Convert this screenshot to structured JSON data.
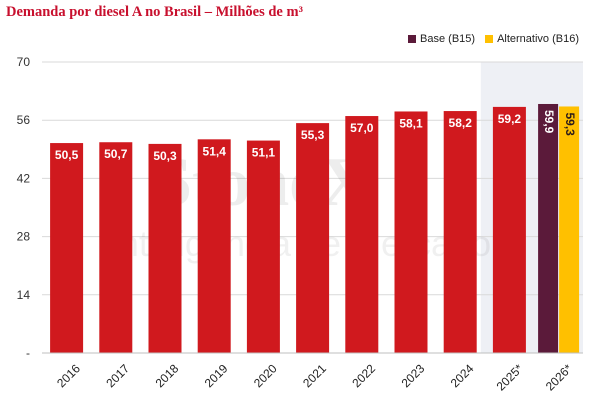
{
  "title": "Demanda por diesel A no Brasil – Milhões de m³",
  "legend": [
    {
      "label": "Base (B15)",
      "color": "#5b1a3a"
    },
    {
      "label": "Alternativo (B16)",
      "color": "#ffc000"
    }
  ],
  "watermark": {
    "line1": "StoneX",
    "line2": "Inteligência de Mercado"
  },
  "chart_data": {
    "type": "bar",
    "title": "Demanda por diesel A no Brasil – Milhões de m³",
    "categories": [
      "2016",
      "2017",
      "2018",
      "2019",
      "2020",
      "2021",
      "2022",
      "2023",
      "2024",
      "2025*",
      "2026*"
    ],
    "y_ticks": [
      "-",
      "14",
      "28",
      "42",
      "56",
      "70"
    ],
    "ylim": [
      0,
      70
    ],
    "grid": true,
    "legend_position": "top-right",
    "bar_color": "#d0191e",
    "series": [
      {
        "values": [
          50.5,
          50.7,
          50.3,
          51.4,
          51.1,
          55.3,
          57.0,
          58.1,
          58.2,
          59.2,
          null
        ],
        "labels": [
          "50,5",
          "50,7",
          "50,3",
          "51,4",
          "51,1",
          "55,3",
          "57,0",
          "58,1",
          "58,2",
          "59,2",
          ""
        ]
      },
      {
        "name": "Base (B15)",
        "values": [
          null,
          null,
          null,
          null,
          null,
          null,
          null,
          null,
          null,
          null,
          59.9
        ],
        "labels": [
          "",
          "",
          "",
          "",
          "",
          "",
          "",
          "",
          "",
          "",
          "59,9"
        ]
      },
      {
        "name": "Alternativo (B16)",
        "values": [
          null,
          null,
          null,
          null,
          null,
          null,
          null,
          null,
          null,
          null,
          59.3
        ],
        "labels": [
          "",
          "",
          "",
          "",
          "",
          "",
          "",
          "",
          "",
          "",
          "59,3"
        ]
      }
    ],
    "colors": {
      "main": "#d0191e",
      "base": "#5b1a3a",
      "alt": "#ffc000",
      "highlight_bg": "#eef0f5"
    }
  }
}
